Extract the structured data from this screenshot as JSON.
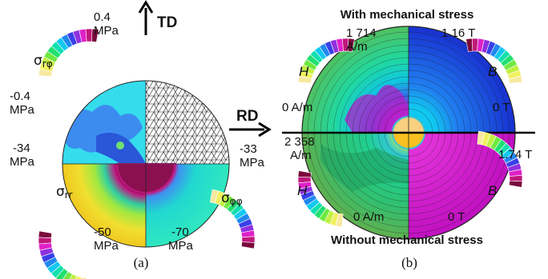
{
  "panel_a": {
    "caption": "(a)",
    "axis_td": "TD",
    "axis_rd": "RD",
    "stress_components": [
      {
        "symbol": "σ",
        "subscript": "rφ",
        "max": "0.4",
        "max_unit": "MPa",
        "min": "-0.4",
        "min_unit": "MPa"
      },
      {
        "symbol": "σ",
        "subscript": "rr",
        "max": "-34",
        "max_unit": "MPa",
        "min": "-50",
        "min_unit": "MPa"
      },
      {
        "symbol": "σ",
        "subscript": "φφ",
        "max": "-33",
        "max_unit": "MPa",
        "min": "-70",
        "min_unit": "MPa"
      }
    ]
  },
  "panel_b": {
    "caption": "(b)",
    "title_top": "With mechanical stress",
    "title_bottom": "Without mechanical stress",
    "fields_top": [
      {
        "symbol": "H",
        "max": "1 714",
        "max_unit": "A/m",
        "min": "0 A/m"
      },
      {
        "symbol": "B",
        "max": "1.16 T",
        "min": "0 T"
      }
    ],
    "fields_bottom": [
      {
        "symbol": "H",
        "max": "2 358",
        "max_unit": "A/m",
        "min": "0 A/m"
      },
      {
        "symbol": "B",
        "max": "1.74 T",
        "min": "0 T"
      }
    ]
  },
  "colormap": [
    "#7a0a3c",
    "#c0187a",
    "#e020c8",
    "#9030e0",
    "#3a40e8",
    "#2088f0",
    "#10c8f0",
    "#10e0b0",
    "#20e070",
    "#70e840",
    "#c0f040",
    "#f0f060",
    "#f8e8a0"
  ]
}
